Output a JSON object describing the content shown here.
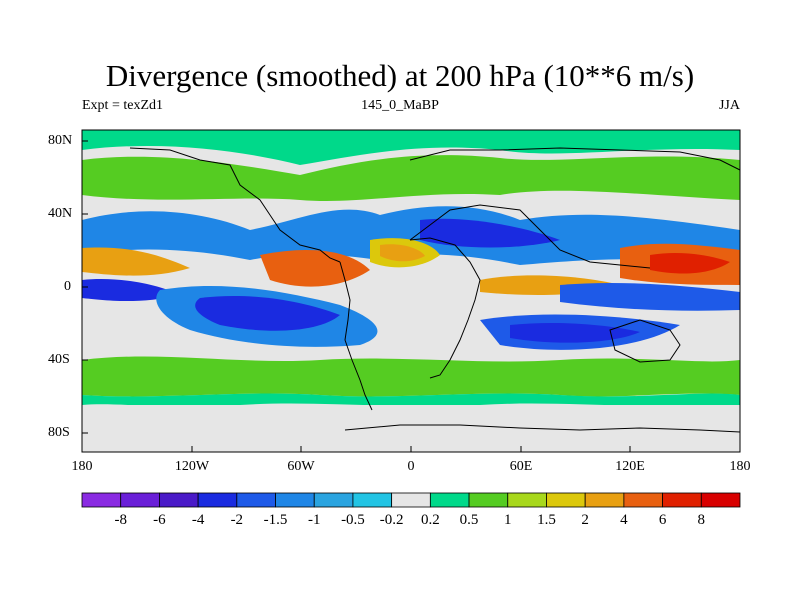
{
  "title": "Divergence (smoothed) at 200 hPa (10**6 m/s)",
  "subtitle_left": "Expt = texZd1",
  "subtitle_center": "145_0_MaBP",
  "subtitle_right": "JJA",
  "lat_labels": [
    "80N",
    "40N",
    "0",
    "40S",
    "80S"
  ],
  "lon_labels": [
    "180",
    "120W",
    "60W",
    "0",
    "60E",
    "120E",
    "180"
  ],
  "colorbar": {
    "labels": [
      "-8",
      "-6",
      "-4",
      "-2",
      "-1.5",
      "-1",
      "-0.5",
      "-0.2",
      "0.2",
      "0.5",
      "1",
      "1.5",
      "2",
      "4",
      "6",
      "8"
    ],
    "colors": [
      "#8a2be2",
      "#6a1fd8",
      "#4a1ac8",
      "#1a2be0",
      "#1e5ae8",
      "#1f86e6",
      "#2aa4e0",
      "#22c4e4",
      "#e6e6e6",
      "#00d98a",
      "#55cc22",
      "#a8d81c",
      "#dcc80c",
      "#e8a012",
      "#e86010",
      "#e02000",
      "#d80000"
    ]
  },
  "colors": {
    "ocean_bg": "#e6e6e6",
    "coast": "#000000"
  }
}
